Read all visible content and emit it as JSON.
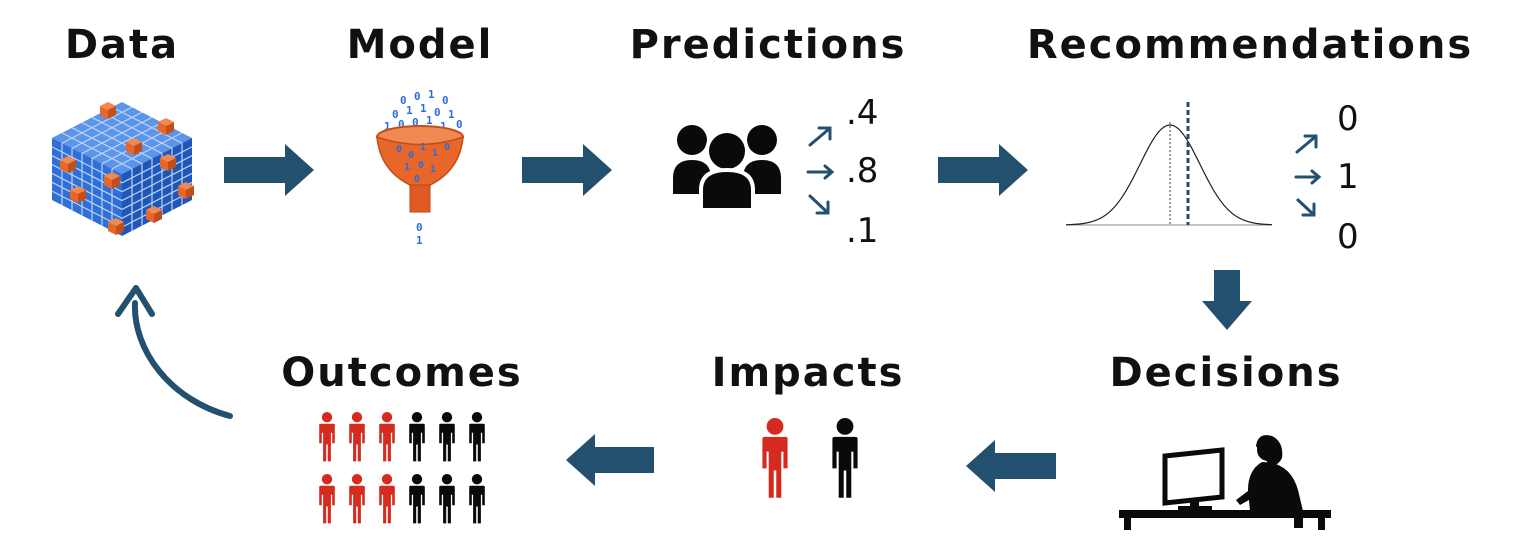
{
  "stages": {
    "data": "Data",
    "model": "Model",
    "predictions": "Predictions",
    "recommendations": "Recommendations",
    "decisions": "Decisions",
    "impacts": "Impacts",
    "outcomes": "Outcomes"
  },
  "predictions_values": [
    ".4",
    ".8",
    ".1"
  ],
  "recommendation_values": [
    "0",
    "1",
    "0"
  ],
  "funnel_bits": [
    "0",
    "0",
    "1",
    "0",
    "0",
    "1",
    "1",
    "0",
    "1",
    "0",
    "1",
    "0",
    "0",
    "1",
    "1",
    "0",
    "1"
  ],
  "funnel_output_bits": [
    "0",
    "1"
  ],
  "colors": {
    "arrow": "#24506f",
    "red_person": "#d52b1e",
    "black_person": "#0a0a0a",
    "cube_blue": "#2f6fd6",
    "cube_orange": "#e8662a",
    "funnel_orange": "#e8662a",
    "bits_blue": "#2a6fd6"
  },
  "icons": {
    "data": "data-cube-icon",
    "model": "funnel-icon",
    "predictions": "people-group-icon",
    "recommendations": "normal-distribution-icon",
    "decisions": "person-at-computer-icon",
    "impacts": "person-icons",
    "outcomes": "population-icons"
  },
  "outcomes_grid": {
    "rows": 2,
    "red_per_row": 3,
    "black_per_row": 3
  }
}
